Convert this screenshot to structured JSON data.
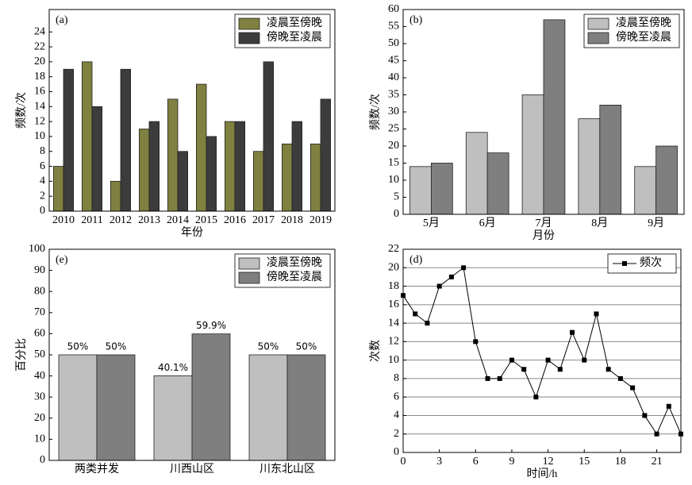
{
  "chart_data": [
    {
      "type": "bar",
      "title": "(a)",
      "xlabel": "年份",
      "ylabel": "频数/次",
      "categories": [
        "2010",
        "2011",
        "2012",
        "2013",
        "2014",
        "2015",
        "2016",
        "2017",
        "2018",
        "2019"
      ],
      "series": [
        {
          "name": "凌晨至傍晚",
          "color": "#808040",
          "values": [
            6,
            20,
            4,
            11,
            15,
            17,
            12,
            8,
            9,
            9
          ]
        },
        {
          "name": "傍晚至凌晨",
          "color": "#3c3c3c",
          "values": [
            19,
            14,
            19,
            12,
            8,
            10,
            12,
            20,
            12,
            15
          ]
        }
      ],
      "ylim": [
        0,
        27
      ],
      "yticks": [
        0,
        2,
        4,
        6,
        8,
        10,
        12,
        14,
        16,
        18,
        20,
        22,
        24
      ],
      "grid": false,
      "legend": "upper right"
    },
    {
      "type": "bar",
      "title": "(b)",
      "xlabel": "月份",
      "ylabel": "频数/次",
      "categories": [
        "5月",
        "6月",
        "7月",
        "8月",
        "9月"
      ],
      "series": [
        {
          "name": "凌晨至傍晚",
          "color": "#bfbfbf",
          "values": [
            14,
            24,
            35,
            28,
            14
          ]
        },
        {
          "name": "傍晚至凌晨",
          "color": "#7f7f7f",
          "values": [
            15,
            18,
            57,
            32,
            20
          ]
        }
      ],
      "ylim": [
        0,
        60
      ],
      "yticks": [
        0,
        5,
        10,
        15,
        20,
        25,
        30,
        35,
        40,
        45,
        50,
        55,
        60
      ],
      "grid": false,
      "legend": "upper right"
    },
    {
      "type": "bar",
      "title": "(e)",
      "ylabel": "百分比",
      "categories": [
        "两类并发",
        "川西山区",
        "川东北山区"
      ],
      "series": [
        {
          "name": "凌晨至傍晚",
          "color": "#bfbfbf",
          "values": [
            50,
            40.1,
            50
          ],
          "value_labels": [
            "50%",
            "40.1%",
            "50%"
          ]
        },
        {
          "name": "傍晚至凌晨",
          "color": "#7f7f7f",
          "values": [
            50,
            59.9,
            50
          ],
          "value_labels": [
            "50%",
            "59.9%",
            "50%"
          ]
        }
      ],
      "ylim": [
        0,
        100
      ],
      "yticks": [
        0,
        10,
        20,
        30,
        40,
        50,
        60,
        70,
        80,
        90,
        100
      ],
      "grid": false,
      "legend": "upper right"
    },
    {
      "type": "line",
      "title": "(d)",
      "xlabel": "时间/h",
      "ylabel": "次数",
      "x": [
        0,
        1,
        2,
        3,
        4,
        5,
        6,
        7,
        8,
        9,
        10,
        11,
        12,
        13,
        14,
        15,
        16,
        17,
        18,
        19,
        20,
        21,
        22,
        23
      ],
      "series": [
        {
          "name": "频次",
          "color": "#000000",
          "values": [
            17,
            15,
            14,
            18,
            19,
            20,
            12,
            8,
            8,
            10,
            9,
            6,
            10,
            9,
            13,
            10,
            15,
            9,
            8,
            7,
            4,
            2,
            5,
            2
          ]
        }
      ],
      "xlim": [
        0,
        23
      ],
      "xticks": [
        0,
        3,
        6,
        9,
        12,
        15,
        18,
        21
      ],
      "ylim": [
        0,
        22
      ],
      "yticks": [
        0,
        2,
        4,
        6,
        8,
        10,
        12,
        14,
        16,
        18,
        20,
        22
      ],
      "grid": true,
      "legend": "upper right"
    }
  ]
}
